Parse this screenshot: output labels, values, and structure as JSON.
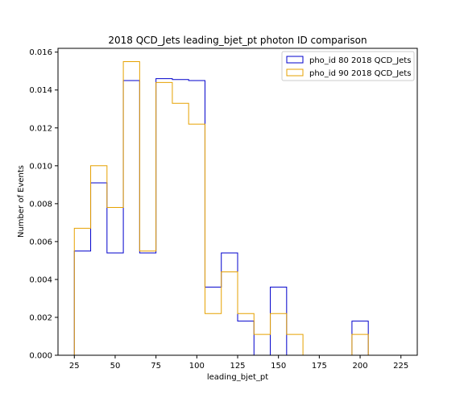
{
  "chart_data": {
    "type": "histogram",
    "title": "2018 QCD_Jets leading_bjet_pt photon ID comparison",
    "xlabel": "leading_bjet_pt",
    "ylabel": "Number of Events",
    "xlim": [
      15,
      235
    ],
    "ylim": [
      0,
      0.0162
    ],
    "xticks": [
      25,
      50,
      75,
      100,
      125,
      150,
      175,
      200,
      225
    ],
    "yticks": [
      0.0,
      0.002,
      0.004,
      0.006,
      0.008,
      0.01,
      0.012,
      0.014,
      0.016
    ],
    "ytick_labels": [
      "0.000",
      "0.002",
      "0.004",
      "0.006",
      "0.008",
      "0.010",
      "0.012",
      "0.014",
      "0.016"
    ],
    "bin_edges": [
      25,
      35,
      45,
      55,
      65,
      75,
      85,
      95,
      105,
      115,
      125,
      135,
      145,
      155,
      165,
      175,
      185,
      195,
      205,
      215,
      225
    ],
    "legend_position": "top-right",
    "series": [
      {
        "name": "pho_id 80 2018 QCD_Jets",
        "color": "#0000cc",
        "values": [
          0.0055,
          0.0091,
          0.0054,
          0.0145,
          0.0054,
          0.0146,
          0.01455,
          0.0145,
          0.0036,
          0.0054,
          0.0018,
          0.0,
          0.0036,
          0.0,
          0.0,
          0.0,
          0.0,
          0.0018,
          0.0,
          0.0
        ]
      },
      {
        "name": "pho_id 90 2018 QCD_Jets",
        "color": "#e6a100",
        "values": [
          0.0067,
          0.01,
          0.0078,
          0.0155,
          0.0055,
          0.0144,
          0.0133,
          0.0122,
          0.0022,
          0.0044,
          0.0022,
          0.0011,
          0.0022,
          0.0011,
          0.0,
          0.0,
          0.0,
          0.0011,
          0.0,
          0.0
        ]
      }
    ]
  }
}
